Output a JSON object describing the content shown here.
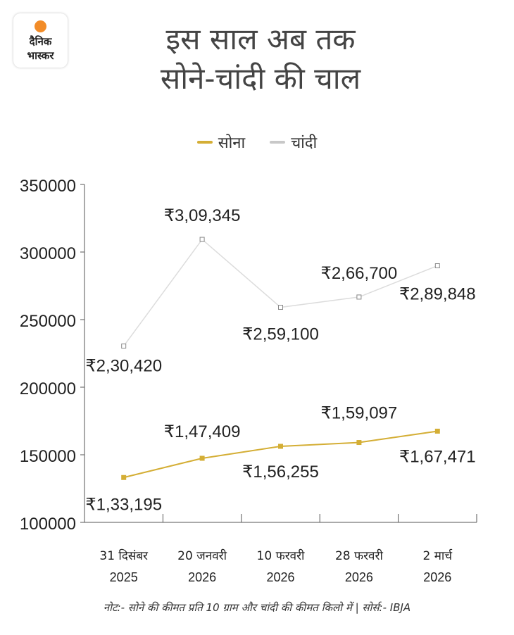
{
  "logo": {
    "line1": "दैनिक",
    "line2": "भास्कर"
  },
  "title": {
    "line1": "इस साल अब तक",
    "line2": "सोने-चांदी की चाल"
  },
  "note": "नोट:- सोने की कीमत प्रति 10 ग्राम और चांदी की कीमत किलो में | सोर्स:- IBJA",
  "chart_data": {
    "type": "line",
    "title": "इस साल अब तक सोने-चांदी की चाल",
    "categories": [
      [
        "31 दिसंबर",
        "2025"
      ],
      [
        "20 जनवरी",
        "2026"
      ],
      [
        "10 फरवरी",
        "2026"
      ],
      [
        "28 फरवरी",
        "2026"
      ],
      [
        "2 मार्च",
        "2026"
      ]
    ],
    "ylim": [
      100000,
      350000
    ],
    "yticks": [
      "100000",
      "150000",
      "200000",
      "250000",
      "300000",
      "350000"
    ],
    "legend_position": "top-center",
    "series": [
      {
        "name": "सोना",
        "color": "#d4ae35",
        "values": [
          133195,
          147409,
          156255,
          159097,
          167471
        ],
        "labels": [
          "₹1,33,195",
          "₹1,47,409",
          "₹1,56,255",
          "₹1,59,097",
          "₹1,67,471"
        ]
      },
      {
        "name": "चांदी",
        "color": "#dcdcdc",
        "values": [
          230420,
          309345,
          259100,
          266700,
          289848
        ],
        "labels": [
          "₹2,30,420",
          "₹3,09,345",
          "₹2,59,100",
          "₹2,66,700",
          "₹2,89,848"
        ]
      }
    ]
  }
}
